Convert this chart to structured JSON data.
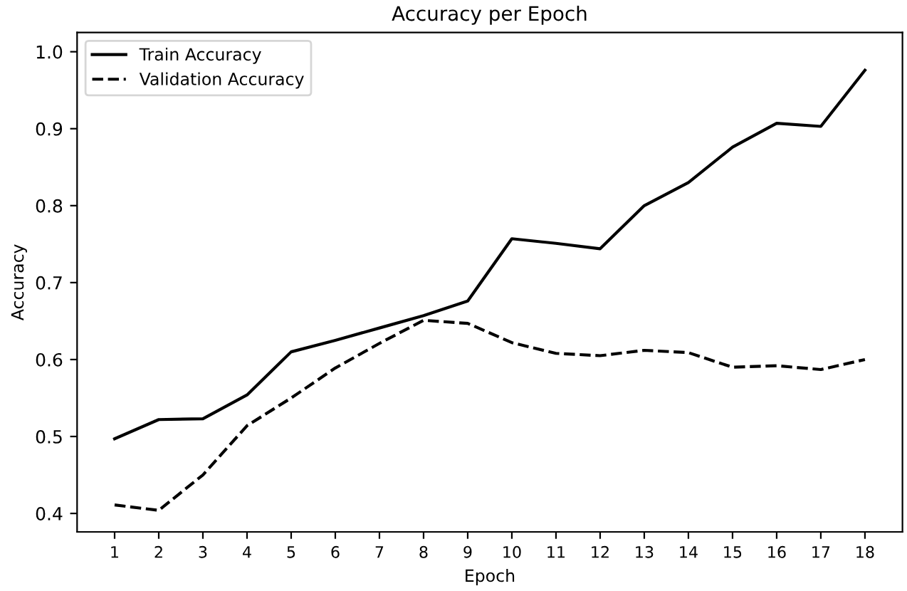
{
  "chart_data": {
    "type": "line",
    "title": "Accuracy per Epoch",
    "xlabel": "Epoch",
    "ylabel": "Accuracy",
    "x": [
      1,
      2,
      3,
      4,
      5,
      6,
      7,
      8,
      9,
      10,
      11,
      12,
      13,
      14,
      15,
      16,
      17,
      18
    ],
    "series": [
      {
        "name": "Train Accuracy",
        "color": "#000000",
        "line_style": "solid",
        "values": [
          0.497,
          0.522,
          0.523,
          0.554,
          0.61,
          0.625,
          0.641,
          0.657,
          0.676,
          0.757,
          0.751,
          0.744,
          0.8,
          0.83,
          0.876,
          0.907,
          0.903,
          0.976
        ]
      },
      {
        "name": "Validation Accuracy",
        "color": "#000000",
        "line_style": "dashed",
        "values": [
          0.411,
          0.404,
          0.45,
          0.514,
          0.55,
          0.589,
          0.621,
          0.651,
          0.647,
          0.622,
          0.608,
          0.605,
          0.612,
          0.609,
          0.59,
          0.592,
          0.587,
          0.6
        ]
      }
    ],
    "xlim": [
      0.15,
      18.85
    ],
    "xticks": [
      1,
      2,
      3,
      4,
      5,
      6,
      7,
      8,
      9,
      10,
      11,
      12,
      13,
      14,
      15,
      16,
      17,
      18
    ],
    "ylim": [
      0.376,
      1.025
    ],
    "yticks": [
      0.4,
      0.5,
      0.6,
      0.7,
      0.8,
      0.9,
      {
        "value": 1.0,
        "label": "1.0"
      }
    ],
    "grid": false,
    "legend": "top left",
    "marker": "none"
  }
}
